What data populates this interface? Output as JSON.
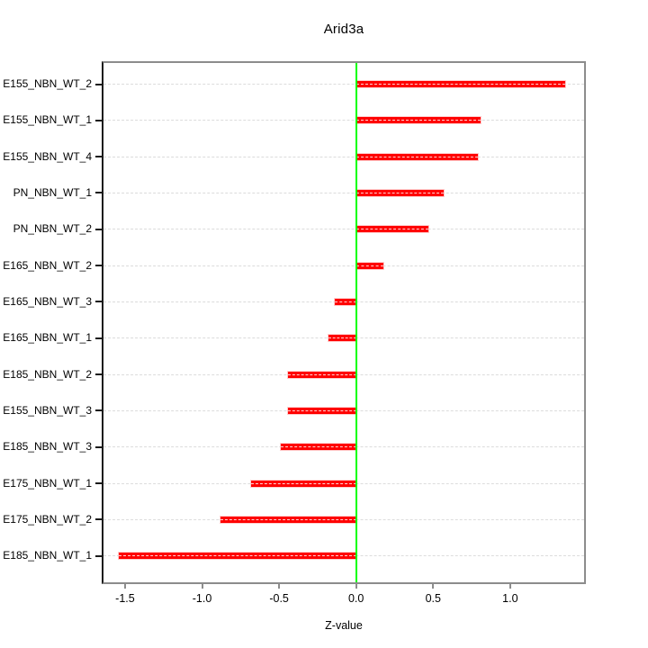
{
  "chart_data": {
    "type": "bar",
    "orientation": "horizontal",
    "title": "Arid3a",
    "xlabel": "Z-value",
    "ylabel": "",
    "categories": [
      "E155_NBN_WT_2",
      "E155_NBN_WT_1",
      "E155_NBN_WT_4",
      "PN_NBN_WT_1",
      "PN_NBN_WT_2",
      "E165_NBN_WT_2",
      "E165_NBN_WT_3",
      "E165_NBN_WT_1",
      "E185_NBN_WT_2",
      "E155_NBN_WT_3",
      "E185_NBN_WT_3",
      "E175_NBN_WT_1",
      "E175_NBN_WT_2",
      "E185_NBN_WT_1"
    ],
    "values": [
      1.36,
      0.81,
      0.79,
      0.57,
      0.47,
      0.18,
      -0.14,
      -0.18,
      -0.44,
      -0.44,
      -0.49,
      -0.68,
      -0.88,
      -1.54
    ],
    "xlim": [
      -1.64,
      1.48
    ],
    "xticks": [
      -1.5,
      -1.0,
      -0.5,
      0.0,
      0.5,
      1.0
    ],
    "xtick_labels": [
      "-1.5",
      "-1.0",
      "-0.5",
      "0.0",
      "0.5",
      "1.0"
    ],
    "grid": true,
    "grid_style": "dashed",
    "legend": "none",
    "reference_line_x": 0.0
  },
  "colors": {
    "bar": "#ff0000",
    "zero_line": "#00ff00",
    "grid": "#dcdcdc",
    "box": "#8c8c8c",
    "y_axis": "#1a1a1a",
    "x_tick": "#8c8c8c",
    "text": "#000000",
    "background": "#ffffff"
  }
}
